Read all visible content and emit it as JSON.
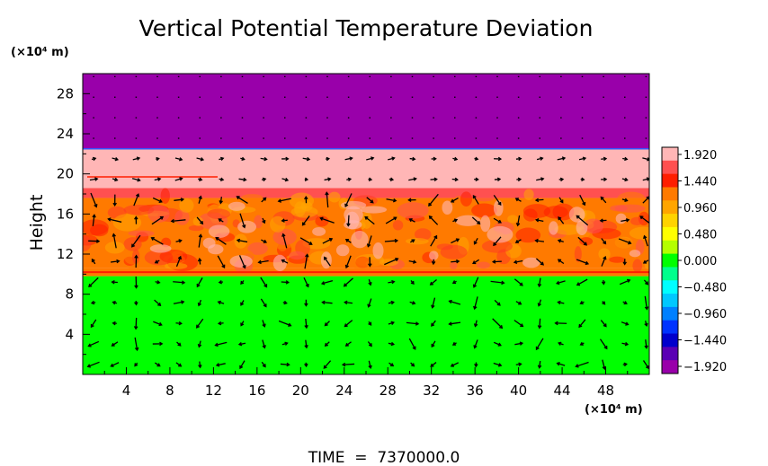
{
  "chart_data": {
    "type": "heatmap",
    "title": "Vertical Potential Temperature Deviation",
    "ylabel": "Height",
    "xlabel": "",
    "x_unit": "(×10⁴ m)",
    "y_unit": "(×10⁴ m)",
    "footer": "TIME  =  7370000.0",
    "xlim": [
      0,
      52
    ],
    "ylim": [
      0,
      30
    ],
    "x_ticks": [
      4,
      8,
      12,
      16,
      20,
      24,
      28,
      32,
      36,
      40,
      44,
      48
    ],
    "y_ticks": [
      4,
      8,
      12,
      16,
      20,
      24,
      28
    ],
    "layers": [
      {
        "y0": 0,
        "y1": 9.8,
        "value": 0.0
      },
      {
        "y0": 9.8,
        "y1": 10.6,
        "value": 1.2
      },
      {
        "y0": 10.6,
        "y1": 17.6,
        "value": 1.1
      },
      {
        "y0": 17.6,
        "y1": 18.6,
        "value": 1.55
      },
      {
        "y0": 18.6,
        "y1": 22.5,
        "value": 1.92
      },
      {
        "y0": 22.5,
        "y1": 30,
        "value": -1.92
      }
    ],
    "colorbar": {
      "labels": [
        "1.920",
        "1.440",
        "0.960",
        "0.480",
        "0.000",
        "−0.480",
        "−0.960",
        "−1.440",
        "−1.920"
      ],
      "colors": [
        "#ffb6b6",
        "#ff5050",
        "#ff1e00",
        "#ff7a00",
        "#ffa500",
        "#ffd300",
        "#ffff00",
        "#b4ff00",
        "#00ff00",
        "#00ff8c",
        "#00ffff",
        "#00c8ff",
        "#0080ff",
        "#0033ff",
        "#0000cc",
        "#5a00b4",
        "#9900aa"
      ]
    }
  }
}
